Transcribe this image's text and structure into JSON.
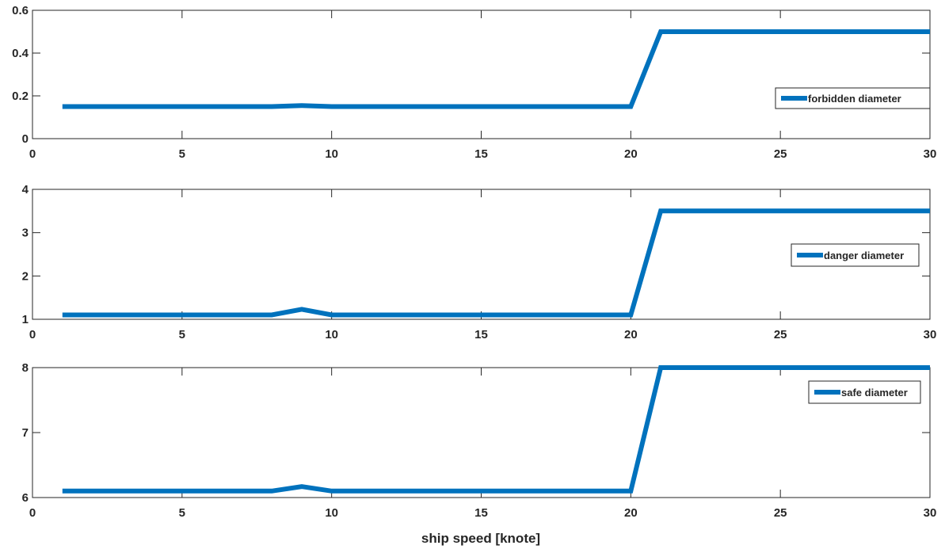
{
  "xlabel": "ship speed [knote]",
  "chart_data": [
    {
      "type": "line",
      "x": [
        1,
        2,
        3,
        4,
        5,
        6,
        7,
        8,
        9,
        10,
        11,
        12,
        13,
        14,
        15,
        16,
        17,
        18,
        19,
        20,
        21,
        22,
        23,
        24,
        25,
        26,
        27,
        28,
        29,
        30
      ],
      "series": [
        {
          "name": "forbidden diameter",
          "values": [
            0.15,
            0.15,
            0.15,
            0.15,
            0.15,
            0.15,
            0.15,
            0.15,
            0.155,
            0.15,
            0.15,
            0.15,
            0.15,
            0.15,
            0.15,
            0.15,
            0.15,
            0.15,
            0.15,
            0.15,
            0.5,
            0.5,
            0.5,
            0.5,
            0.5,
            0.5,
            0.5,
            0.5,
            0.5,
            0.5
          ]
        }
      ],
      "xlim": [
        0,
        30
      ],
      "ylim": [
        0,
        0.6
      ],
      "xticks": [
        0,
        5,
        10,
        15,
        20,
        25,
        30
      ],
      "yticks": [
        0,
        0.2,
        0.4,
        0.6
      ],
      "ytick_labels": [
        "0",
        "0.2",
        "0.4",
        "0.6"
      ],
      "xlabel": "",
      "ylabel": "",
      "title": "",
      "legend": "right",
      "grid": false,
      "color": "#0072BD"
    },
    {
      "type": "line",
      "x": [
        1,
        2,
        3,
        4,
        5,
        6,
        7,
        8,
        9,
        10,
        11,
        12,
        13,
        14,
        15,
        16,
        17,
        18,
        19,
        20,
        21,
        22,
        23,
        24,
        25,
        26,
        27,
        28,
        29,
        30
      ],
      "series": [
        {
          "name": "danger diameter",
          "values": [
            1.1,
            1.1,
            1.1,
            1.1,
            1.1,
            1.1,
            1.1,
            1.1,
            1.23,
            1.1,
            1.1,
            1.1,
            1.1,
            1.1,
            1.1,
            1.1,
            1.1,
            1.1,
            1.1,
            1.1,
            3.5,
            3.5,
            3.5,
            3.5,
            3.5,
            3.5,
            3.5,
            3.5,
            3.5,
            3.5
          ]
        }
      ],
      "xlim": [
        0,
        30
      ],
      "ylim": [
        1,
        4
      ],
      "xticks": [
        0,
        5,
        10,
        15,
        20,
        25,
        30
      ],
      "yticks": [
        1,
        2,
        3,
        4
      ],
      "ytick_labels": [
        "1",
        "2",
        "3",
        "4"
      ],
      "xlabel": "",
      "ylabel": "",
      "title": "",
      "legend": "right",
      "grid": false,
      "color": "#0072BD"
    },
    {
      "type": "line",
      "x": [
        1,
        2,
        3,
        4,
        5,
        6,
        7,
        8,
        9,
        10,
        11,
        12,
        13,
        14,
        15,
        16,
        17,
        18,
        19,
        20,
        21,
        22,
        23,
        24,
        25,
        26,
        27,
        28,
        29,
        30
      ],
      "series": [
        {
          "name": "safe diameter",
          "values": [
            6.1,
            6.1,
            6.1,
            6.1,
            6.1,
            6.1,
            6.1,
            6.1,
            6.17,
            6.1,
            6.1,
            6.1,
            6.1,
            6.1,
            6.1,
            6.1,
            6.1,
            6.1,
            6.1,
            6.1,
            8,
            8,
            8,
            8,
            8,
            8,
            8,
            8,
            8,
            8
          ]
        }
      ],
      "xlim": [
        0,
        30
      ],
      "ylim": [
        6,
        8
      ],
      "xticks": [
        0,
        5,
        10,
        15,
        20,
        25,
        30
      ],
      "yticks": [
        6,
        7,
        8
      ],
      "ytick_labels": [
        "6",
        "7",
        "8"
      ],
      "xlabel": "ship speed [knote]",
      "ylabel": "",
      "title": "",
      "legend": "upper-right",
      "grid": false,
      "color": "#0072BD"
    }
  ]
}
